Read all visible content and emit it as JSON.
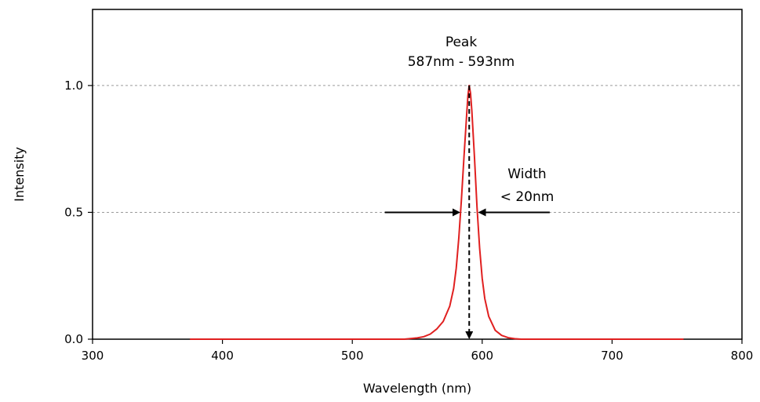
{
  "chart_data": {
    "type": "line",
    "xlabel": "Wavelength (nm)",
    "ylabel": "Intensity",
    "xlim": [
      300,
      800
    ],
    "ylim": [
      0,
      1.3
    ],
    "x_ticks": [
      300,
      400,
      500,
      600,
      700,
      800
    ],
    "x_tick_labels": [
      "300",
      "400",
      "500",
      "600",
      "700",
      "800"
    ],
    "y_ticks": [
      0.0,
      0.5,
      1.0
    ],
    "y_tick_labels": [
      "0.0",
      "0.5",
      "1.0"
    ],
    "grid": "horizontal dashed at y ticks",
    "series": [
      {
        "color": "#e02020",
        "x": [
          375,
          400,
          450,
          500,
          540,
          550,
          555,
          560,
          565,
          570,
          575,
          578,
          580,
          582,
          584,
          586,
          588,
          589,
          590,
          591,
          592,
          594,
          596,
          598,
          600,
          602,
          605,
          610,
          615,
          620,
          625,
          630,
          650,
          700,
          755
        ],
        "y": [
          0,
          0,
          0,
          0,
          0,
          0.005,
          0.01,
          0.02,
          0.04,
          0.07,
          0.13,
          0.2,
          0.28,
          0.4,
          0.55,
          0.72,
          0.88,
          0.96,
          1.0,
          0.97,
          0.9,
          0.72,
          0.52,
          0.36,
          0.24,
          0.16,
          0.09,
          0.035,
          0.015,
          0.006,
          0.002,
          0,
          0,
          0,
          0
        ]
      }
    ],
    "annotations": [
      {
        "id": "peak",
        "lines": [
          "Peak",
          "587nm - 593nm"
        ]
      },
      {
        "id": "width",
        "lines": [
          "Width",
          "< 20nm"
        ]
      }
    ],
    "peak_marker": {
      "x": 590,
      "y_top": 1.0,
      "y_bottom": 0.0,
      "style": "dashed arrow down"
    },
    "width_marker": {
      "y": 0.5,
      "left_from": 525,
      "left_to": 582,
      "right_from": 652,
      "right_to": 598
    }
  }
}
